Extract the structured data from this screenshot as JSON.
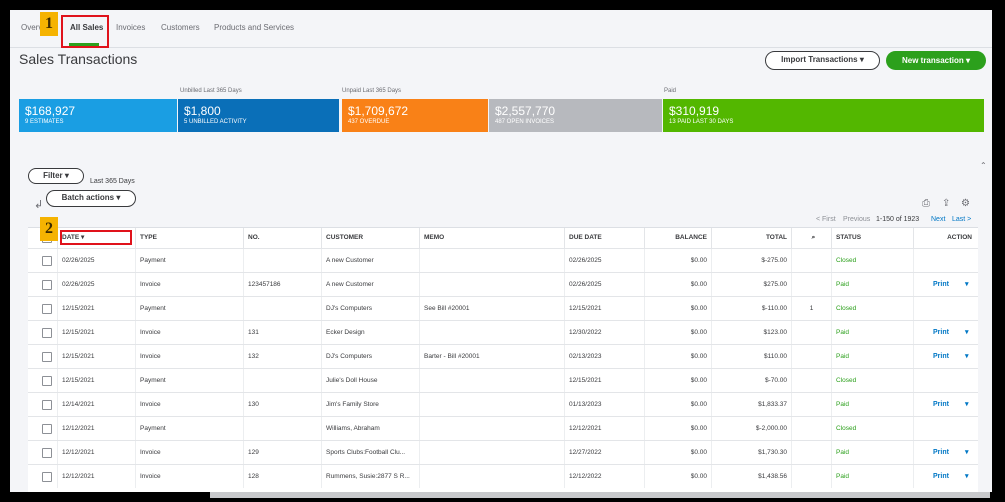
{
  "nav": {
    "tabs": [
      "Overview",
      "All Sales",
      "Invoices",
      "Customers",
      "Products and Services"
    ],
    "overview_visible": "Overv"
  },
  "badges": {
    "one": "1",
    "two": "2"
  },
  "page": {
    "title": "Sales Transactions"
  },
  "buttons": {
    "import": "Import Transactions ▾",
    "new": "New transaction ▾",
    "filter": "Filter ▾",
    "batch": "Batch actions ▾"
  },
  "money_bar": {
    "unbilled_label": "Unbilled Last 365 Days",
    "unpaid_label": "Unpaid Last 365 Days",
    "paid_label": "Paid",
    "segments": [
      {
        "amount": "$168,927",
        "sub": "9 ESTIMATES",
        "color": "#1a9ee3"
      },
      {
        "amount": "$1,800",
        "sub": "5 UNBILLED ACTIVITY",
        "color": "#0a6fb8"
      },
      {
        "amount": "$1,709,672",
        "sub": "437 OVERDUE",
        "color": "#f98117"
      },
      {
        "amount": "$2,557,770",
        "sub": "487 OPEN INVOICES",
        "color": "#b7b9be"
      },
      {
        "amount": "$310,919",
        "sub": "13 PAID LAST 30 DAYS",
        "color": "#53b700"
      }
    ]
  },
  "filter": {
    "range": "Last 365 Days"
  },
  "pager": {
    "first": "< First",
    "previous": "Previous",
    "range": "1-150 of 1923",
    "next": "Next",
    "last": "Last >"
  },
  "table": {
    "headers": [
      "DATE ▾",
      "TYPE",
      "NO.",
      "CUSTOMER",
      "MEMO",
      "DUE DATE",
      "BALANCE",
      "TOTAL",
      "",
      "STATUS",
      "ACTION"
    ],
    "rows": [
      {
        "date": "02/26/2025",
        "type": "Payment",
        "no": "",
        "customer": "A new Customer",
        "memo": "",
        "due": "02/26/2025",
        "balance": "$0.00",
        "total": "$-275.00",
        "attach": "",
        "status": "Closed",
        "action": ""
      },
      {
        "date": "02/26/2025",
        "type": "Invoice",
        "no": "123457186",
        "customer": "A new Customer",
        "memo": "",
        "due": "02/26/2025",
        "balance": "$0.00",
        "total": "$275.00",
        "attach": "",
        "status": "Paid",
        "action": "Print"
      },
      {
        "date": "12/15/2021",
        "type": "Payment",
        "no": "",
        "customer": "DJ's Computers",
        "memo": "See Bill #20001",
        "due": "12/15/2021",
        "balance": "$0.00",
        "total": "$-110.00",
        "attach": "1",
        "status": "Closed",
        "action": ""
      },
      {
        "date": "12/15/2021",
        "type": "Invoice",
        "no": "131",
        "customer": "Ecker Design",
        "memo": "",
        "due": "12/30/2022",
        "balance": "$0.00",
        "total": "$123.00",
        "attach": "",
        "status": "Paid",
        "action": "Print"
      },
      {
        "date": "12/15/2021",
        "type": "Invoice",
        "no": "132",
        "customer": "DJ's Computers",
        "memo": "Barter - Bill #20001",
        "due": "02/13/2023",
        "balance": "$0.00",
        "total": "$110.00",
        "attach": "",
        "status": "Paid",
        "action": "Print"
      },
      {
        "date": "12/15/2021",
        "type": "Payment",
        "no": "",
        "customer": "Julie's Doll House",
        "memo": "",
        "due": "12/15/2021",
        "balance": "$0.00",
        "total": "$-70.00",
        "attach": "",
        "status": "Closed",
        "action": ""
      },
      {
        "date": "12/14/2021",
        "type": "Invoice",
        "no": "130",
        "customer": "Jim's Family Store",
        "memo": "",
        "due": "01/13/2023",
        "balance": "$0.00",
        "total": "$1,833.37",
        "attach": "",
        "status": "Paid",
        "action": "Print"
      },
      {
        "date": "12/12/2021",
        "type": "Payment",
        "no": "",
        "customer": "Williams, Abraham",
        "memo": "",
        "due": "12/12/2021",
        "balance": "$0.00",
        "total": "$-2,000.00",
        "attach": "",
        "status": "Closed",
        "action": ""
      },
      {
        "date": "12/12/2021",
        "type": "Invoice",
        "no": "129",
        "customer": "Sports Clubs:Football Clu...",
        "memo": "",
        "due": "12/27/2022",
        "balance": "$0.00",
        "total": "$1,730.30",
        "attach": "",
        "status": "Paid",
        "action": "Print"
      },
      {
        "date": "12/12/2021",
        "type": "Invoice",
        "no": "128",
        "customer": "Rummens, Susie:2877 S R...",
        "memo": "",
        "due": "12/12/2022",
        "balance": "$0.00",
        "total": "$1,438.56",
        "attach": "",
        "status": "Paid",
        "action": "Print"
      }
    ]
  },
  "colors": {
    "accent_green": "#2ca01c",
    "link_blue": "#0077c5",
    "highlight_red": "#e0121b",
    "badge_yellow": "#f5b301"
  },
  "icons": [
    "print-icon",
    "export-icon",
    "settings-gear-icon",
    "sort-bracket-icon",
    "attachment-icon",
    "caret-down-icon"
  ]
}
